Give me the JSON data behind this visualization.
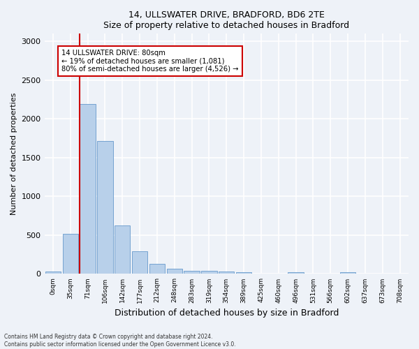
{
  "title1": "14, ULLSWATER DRIVE, BRADFORD, BD6 2TE",
  "title2": "Size of property relative to detached houses in Bradford",
  "xlabel": "Distribution of detached houses by size in Bradford",
  "ylabel": "Number of detached properties",
  "categories": [
    "0sqm",
    "35sqm",
    "71sqm",
    "106sqm",
    "142sqm",
    "177sqm",
    "212sqm",
    "248sqm",
    "283sqm",
    "319sqm",
    "354sqm",
    "389sqm",
    "425sqm",
    "460sqm",
    "496sqm",
    "531sqm",
    "566sqm",
    "602sqm",
    "637sqm",
    "673sqm",
    "708sqm"
  ],
  "bar_values": [
    30,
    520,
    2190,
    1720,
    630,
    290,
    130,
    70,
    40,
    40,
    35,
    25,
    0,
    0,
    25,
    0,
    0,
    20,
    0,
    0,
    0
  ],
  "bar_color": "#b8d0ea",
  "bar_edge_color": "#6699cc",
  "vline_color": "#cc0000",
  "annotation_text": "14 ULLSWATER DRIVE: 80sqm\n← 19% of detached houses are smaller (1,081)\n80% of semi-detached houses are larger (4,526) →",
  "annotation_box_color": "#cc0000",
  "ylim": [
    0,
    3100
  ],
  "yticks": [
    0,
    500,
    1000,
    1500,
    2000,
    2500,
    3000
  ],
  "footnote": "Contains HM Land Registry data © Crown copyright and database right 2024.\nContains public sector information licensed under the Open Government Licence v3.0.",
  "bg_color": "#eef2f8",
  "plot_bg_color": "#eef2f8",
  "grid_color": "#ffffff"
}
